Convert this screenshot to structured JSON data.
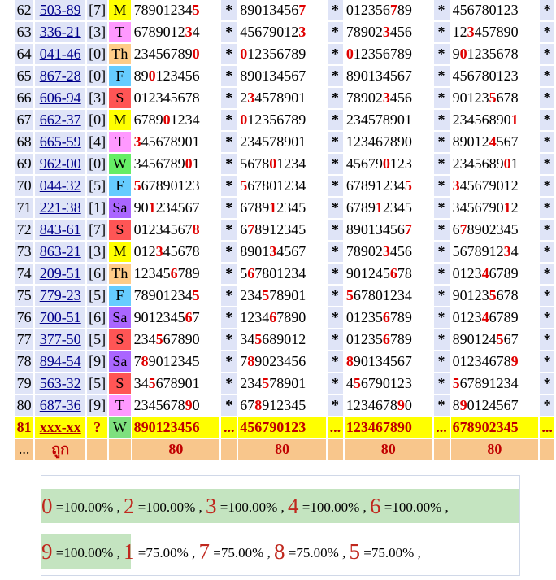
{
  "columns": [
    "row_no",
    "code",
    "group",
    "day",
    "set_1",
    "sep",
    "set_2",
    "sep",
    "set_3",
    "sep",
    "set_4",
    "tail"
  ],
  "day_colors": {
    "M": "#ffff00",
    "T": "#ff99ff",
    "Th": "#ffcc88",
    "F": "#66ccff",
    "S": "#ff5555",
    "W": "#66ee66",
    "Sa": "#aa66ff"
  },
  "rows": [
    {
      "no": "62",
      "code": "503-89",
      "grp": "[7]",
      "day": "M",
      "nums": [
        "789012345",
        "890134567",
        "012356789",
        "456780123"
      ],
      "hl": [
        [
          8
        ],
        [
          8
        ],
        [
          6
        ],
        []
      ]
    },
    {
      "no": "63",
      "code": "336-21",
      "grp": "[3]",
      "day": "T",
      "nums": [
        "678901234",
        "456790123",
        "789023456",
        "123457890"
      ],
      "hl": [
        [
          7
        ],
        [
          8
        ],
        [
          5
        ],
        [
          2
        ]
      ]
    },
    {
      "no": "64",
      "code": "041-46",
      "grp": "[0]",
      "day": "Th",
      "nums": [
        "234567890",
        "012356789",
        "012356789",
        "901235678"
      ],
      "hl": [
        [
          8
        ],
        [
          0
        ],
        [
          0
        ],
        [
          1
        ]
      ]
    },
    {
      "no": "65",
      "code": "867-28",
      "grp": "[0]",
      "day": "F",
      "nums": [
        "890123456",
        "890134567",
        "890134567",
        "456780123"
      ],
      "hl": [
        [
          2
        ],
        [],
        [],
        []
      ]
    },
    {
      "no": "66",
      "code": "606-94",
      "grp": "[3]",
      "day": "S",
      "nums": [
        "012345678",
        "234578901",
        "789023456",
        "901235678"
      ],
      "hl": [
        [],
        [
          1
        ],
        [
          5
        ],
        [
          5
        ]
      ]
    },
    {
      "no": "67",
      "code": "662-37",
      "grp": "[0]",
      "day": "M",
      "nums": [
        "678901234",
        "012356789",
        "234578901",
        "234568901"
      ],
      "hl": [
        [
          4
        ],
        [
          0
        ],
        [],
        [
          8
        ]
      ]
    },
    {
      "no": "68",
      "code": "665-59",
      "grp": "[4]",
      "day": "T",
      "nums": [
        "345678901",
        "234578901",
        "123467890",
        "890124567"
      ],
      "hl": [
        [
          0
        ],
        [],
        [],
        [
          5
        ]
      ]
    },
    {
      "no": "69",
      "code": "962-00",
      "grp": "[0]",
      "day": "W",
      "nums": [
        "345678901",
        "567801234",
        "456790123",
        "234568901"
      ],
      "hl": [
        [
          7
        ],
        [
          4
        ],
        [
          5
        ],
        [
          7
        ]
      ]
    },
    {
      "no": "70",
      "code": "044-32",
      "grp": "[5]",
      "day": "F",
      "nums": [
        "567890123",
        "567801234",
        "678912345",
        "345679012"
      ],
      "hl": [
        [
          0
        ],
        [
          0
        ],
        [
          8
        ],
        [
          0
        ]
      ]
    },
    {
      "no": "71",
      "code": "221-38",
      "grp": "[1]",
      "day": "Sa",
      "nums": [
        "901234567",
        "678912345",
        "678912345",
        "345679012"
      ],
      "hl": [
        [
          2
        ],
        [
          4
        ],
        [
          4
        ],
        [
          7
        ]
      ]
    },
    {
      "no": "72",
      "code": "843-61",
      "grp": "[7]",
      "day": "S",
      "nums": [
        "012345678",
        "678912345",
        "890134567",
        "678902345"
      ],
      "hl": [
        [
          8
        ],
        [
          1
        ],
        [
          8
        ],
        [
          1
        ]
      ]
    },
    {
      "no": "73",
      "code": "863-21",
      "grp": "[3]",
      "day": "M",
      "nums": [
        "012345678",
        "890134567",
        "789023456",
        "567891234"
      ],
      "hl": [
        [
          3
        ],
        [
          4
        ],
        [
          5
        ],
        [
          7
        ]
      ]
    },
    {
      "no": "74",
      "code": "209-51",
      "grp": "[6]",
      "day": "Th",
      "nums": [
        "123456789",
        "567801234",
        "901245678",
        "012346789"
      ],
      "hl": [
        [
          5
        ],
        [
          1
        ],
        [
          6
        ],
        [
          4
        ]
      ]
    },
    {
      "no": "75",
      "code": "779-23",
      "grp": "[5]",
      "day": "F",
      "nums": [
        "789012345",
        "234578901",
        "567801234",
        "901235678"
      ],
      "hl": [
        [
          8
        ],
        [
          3
        ],
        [
          0
        ],
        [
          5
        ]
      ]
    },
    {
      "no": "76",
      "code": "700-51",
      "grp": "[6]",
      "day": "Sa",
      "nums": [
        "901234567",
        "123467890",
        "012356789",
        "012346789"
      ],
      "hl": [
        [
          7
        ],
        [
          4
        ],
        [
          5
        ],
        [
          4
        ]
      ]
    },
    {
      "no": "77",
      "code": "377-50",
      "grp": "[5]",
      "day": "S",
      "nums": [
        "234567890",
        "345689012",
        "012356789",
        "890124567"
      ],
      "hl": [
        [
          3
        ],
        [
          2
        ],
        [
          5
        ],
        [
          6
        ]
      ]
    },
    {
      "no": "78",
      "code": "894-54",
      "grp": "[9]",
      "day": "Sa",
      "nums": [
        "789012345",
        "789023456",
        "890134567",
        "012346789"
      ],
      "hl": [
        [
          1
        ],
        [
          1
        ],
        [
          0
        ],
        [
          8
        ]
      ]
    },
    {
      "no": "79",
      "code": "563-32",
      "grp": "[5]",
      "day": "S",
      "nums": [
        "345678901",
        "234578901",
        "456790123",
        "567891234"
      ],
      "hl": [
        [
          2
        ],
        [
          3
        ],
        [
          1
        ],
        [
          0
        ]
      ]
    },
    {
      "no": "80",
      "code": "687-36",
      "grp": "[9]",
      "day": "T",
      "nums": [
        "234567890",
        "678912345",
        "123467890",
        "890124567"
      ],
      "hl": [
        [
          7
        ],
        [
          2
        ],
        [
          7
        ],
        [
          1
        ]
      ]
    }
  ],
  "today": {
    "no": "81",
    "code": "xxx-xx",
    "grp": "?",
    "day": "W",
    "nums": [
      "890123456",
      "456790123",
      "123467890",
      "678902345"
    ],
    "sep": "..."
  },
  "summary": {
    "no": "...",
    "label": "ถูก",
    "counts": [
      "80",
      "80",
      "80",
      "80"
    ]
  },
  "stats": [
    {
      "d": "0",
      "p": "=100.00%"
    },
    {
      "d": "2",
      "p": "=100.00%"
    },
    {
      "d": "3",
      "p": "=100.00%"
    },
    {
      "d": "4",
      "p": "=100.00%"
    },
    {
      "d": "6",
      "p": "=100.00%"
    },
    {
      "d": "9",
      "p": "=100.00%"
    },
    {
      "d": "1",
      "p": "=75.00%"
    },
    {
      "d": "7",
      "p": "=75.00%"
    },
    {
      "d": "8",
      "p": "=75.00%"
    },
    {
      "d": "5",
      "p": "=75.00%"
    }
  ],
  "star": "*",
  "comma": ","
}
